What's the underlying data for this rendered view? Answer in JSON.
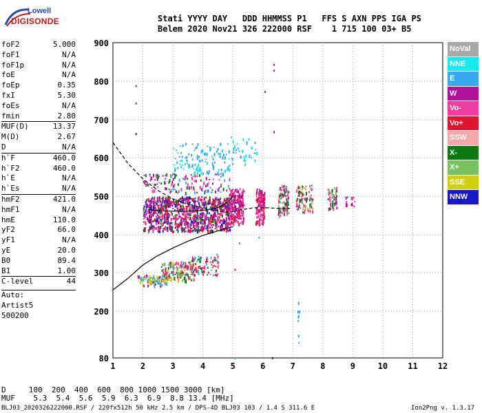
{
  "logo": {
    "line1": "Lowell",
    "line2": "DIGISONDE"
  },
  "header": {
    "row1": "Stati YYYY DAY   DDD HHMMSS P1   FFS S AXN PPS IGA PS",
    "row2": "Belem 2020 Nov21 326 222000 RSF    1 715 100 03+ B5"
  },
  "params": [
    {
      "name": "foF2",
      "value": "5.000"
    },
    {
      "name": "foF1",
      "value": "N/A"
    },
    {
      "name": "foF1p",
      "value": "N/A"
    },
    {
      "name": "foE",
      "value": "N/A"
    },
    {
      "name": "foEp",
      "value": "0.35"
    },
    {
      "name": "fxI",
      "value": "5.30"
    },
    {
      "name": "foEs",
      "value": "N/A"
    },
    {
      "name": "fmin",
      "value": "2.80",
      "sep": false
    },
    {
      "name": "MUF(D)",
      "value": "13.37",
      "sep": true
    },
    {
      "name": "M(D)",
      "value": "2.67"
    },
    {
      "name": "D",
      "value": "N/A"
    },
    {
      "name": "h`F",
      "value": "460.0",
      "sep": true
    },
    {
      "name": "h`F2",
      "value": "460.0"
    },
    {
      "name": "h`E",
      "value": "N/A"
    },
    {
      "name": "h`Es",
      "value": "N/A"
    },
    {
      "name": "hmF2",
      "value": "421.0",
      "sep": true
    },
    {
      "name": "hmF1",
      "value": "N/A"
    },
    {
      "name": "hmE",
      "value": "110.0"
    },
    {
      "name": "yF2",
      "value": "66.0"
    },
    {
      "name": "yF1",
      "value": "N/A"
    },
    {
      "name": "yE",
      "value": "20.0"
    },
    {
      "name": "B0",
      "value": "89.4"
    },
    {
      "name": "B1",
      "value": "1.00"
    },
    {
      "name": "C-level",
      "value": "44",
      "sep": true
    }
  ],
  "auto": {
    "line1": "Auto:",
    "line2": "Artist5",
    "line3": "500200"
  },
  "legend": [
    {
      "label": "NoVal",
      "color": "#a8a8a8"
    },
    {
      "label": "NNE",
      "color": "#18e8f0"
    },
    {
      "label": "E",
      "color": "#38a8f0"
    },
    {
      "label": "W",
      "color": "#b0109c"
    },
    {
      "label": "Vo-",
      "color": "#f03ca0"
    },
    {
      "label": "Vo+",
      "color": "#e0142c"
    },
    {
      "label": "SSW",
      "color": "#f4a8a8"
    },
    {
      "label": "X-",
      "color": "#107810"
    },
    {
      "label": "X+",
      "color": "#78c060"
    },
    {
      "label": "SSE",
      "color": "#d0d010"
    },
    {
      "label": "NNW",
      "color": "#1818c8"
    }
  ],
  "muf_table": {
    "row1": "D     100  200  400  600  800 1000 1500 3000 [km]",
    "row2": "MUF    5.3  5.4  5.6  5.9  6.3  6.9  8.8 13.4 [MHz]"
  },
  "footer": {
    "left": "BLJ03_2020326222000.RSF / 220fx512h 50 kHz 2.5 km / DPS-4D BLJ03 103 / 1.4 S 311.6 E",
    "right": "Ion2Png v. 1.3.17"
  },
  "chart_data": {
    "type": "scatter",
    "xlabel": "",
    "ylabel": "",
    "xlim": [
      1,
      12
    ],
    "ylim": [
      80,
      900
    ],
    "xticks": [
      1,
      2,
      3,
      4,
      5,
      6,
      7,
      8,
      9,
      10,
      11,
      12
    ],
    "yticks": [
      80,
      200,
      300,
      400,
      500,
      600,
      700,
      800,
      900
    ],
    "grid": "dotted",
    "clusters": [
      {
        "x": [
          2.0,
          4.9
        ],
        "y": [
          410,
          500
        ],
        "n": 900,
        "colors": [
          "#b0109c",
          "#f03ca0",
          "#b0109c",
          "#e0142c",
          "#107810",
          "#1818c8"
        ]
      },
      {
        "x": [
          4.85,
          5.35
        ],
        "y": [
          430,
          520
        ],
        "n": 220,
        "colors": [
          "#b0109c",
          "#f03ca0",
          "#e0142c",
          "#b0109c"
        ]
      },
      {
        "x": [
          5.75,
          6.05
        ],
        "y": [
          430,
          520
        ],
        "n": 140,
        "colors": [
          "#b0109c",
          "#f03ca0",
          "#e0142c"
        ]
      },
      {
        "x": [
          6.5,
          6.85
        ],
        "y": [
          450,
          530
        ],
        "n": 90,
        "colors": [
          "#b0109c",
          "#f03ca0",
          "#107810",
          "#78c060"
        ]
      },
      {
        "x": [
          7.1,
          7.65
        ],
        "y": [
          460,
          530
        ],
        "n": 90,
        "colors": [
          "#b0109c",
          "#f03ca0",
          "#107810",
          "#78c060",
          "#d0d010"
        ]
      },
      {
        "x": [
          8.15,
          8.45
        ],
        "y": [
          470,
          525
        ],
        "n": 50,
        "colors": [
          "#b0109c",
          "#107810",
          "#78c060",
          "#f03ca0"
        ]
      },
      {
        "x": [
          8.75,
          9.05
        ],
        "y": [
          475,
          500
        ],
        "n": 18,
        "colors": [
          "#b0109c",
          "#38a8f0",
          "#f03ca0"
        ]
      },
      {
        "x": [
          2.0,
          4.9
        ],
        "y": [
          510,
          560
        ],
        "n": 140,
        "colors": [
          "#b0109c",
          "#f03ca0",
          "#107810",
          "#38a8f0"
        ]
      },
      {
        "x": [
          3.0,
          4.9
        ],
        "y": [
          560,
          640
        ],
        "n": 120,
        "colors": [
          "#38a8f0",
          "#18e8f0",
          "#38a8f0"
        ]
      },
      {
        "x": [
          4.85,
          5.8
        ],
        "y": [
          580,
          660
        ],
        "n": 40,
        "colors": [
          "#38a8f0",
          "#18e8f0"
        ]
      },
      {
        "x": [
          1.8,
          2.8
        ],
        "y": [
          268,
          295
        ],
        "n": 90,
        "colors": [
          "#78c060",
          "#38a8f0",
          "#d0d010",
          "#b0109c"
        ]
      },
      {
        "x": [
          2.6,
          3.7
        ],
        "y": [
          280,
          330
        ],
        "n": 150,
        "colors": [
          "#e0142c",
          "#f03ca0",
          "#107810",
          "#78c060",
          "#38a8f0",
          "#d0d010"
        ]
      },
      {
        "x": [
          3.6,
          4.5
        ],
        "y": [
          295,
          345
        ],
        "n": 80,
        "colors": [
          "#e0142c",
          "#f03ca0",
          "#107810",
          "#38a8f0"
        ]
      },
      {
        "x": [
          7.15,
          7.2
        ],
        "y": [
          100,
          240
        ],
        "n": 8,
        "colors": [
          "#38a8f0"
        ]
      }
    ],
    "isolated": [
      {
        "x": 1.75,
        "y": 790,
        "c": "#b0109c"
      },
      {
        "x": 1.75,
        "y": 745,
        "c": "#b0109c"
      },
      {
        "x": 1.75,
        "y": 665,
        "c": "#1818c8"
      },
      {
        "x": 6.35,
        "y": 845,
        "c": "#b0109c"
      },
      {
        "x": 6.35,
        "y": 830,
        "c": "#b0109c"
      },
      {
        "x": 6.05,
        "y": 775,
        "c": "#b0109c"
      },
      {
        "x": 6.35,
        "y": 670,
        "c": "#b0109c"
      },
      {
        "x": 5.05,
        "y": 310,
        "c": "#e0142c"
      },
      {
        "x": 4.45,
        "y": 350,
        "c": "#38a8f0"
      },
      {
        "x": 5.2,
        "y": 380,
        "c": "#38a8f0"
      },
      {
        "x": 5.85,
        "y": 395,
        "c": "#38a8f0"
      },
      {
        "x": 6.3,
        "y": 82,
        "c": "#1818c8"
      },
      {
        "x": 5.05,
        "y": 82,
        "c": "#38a8f0"
      }
    ],
    "profile_solid": [
      [
        1.0,
        255
      ],
      [
        1.5,
        285
      ],
      [
        2.0,
        320
      ],
      [
        2.5,
        345
      ],
      [
        3.0,
        365
      ],
      [
        3.5,
        383
      ],
      [
        4.0,
        398
      ],
      [
        4.5,
        410
      ],
      [
        5.0,
        421
      ]
    ],
    "profile_solid2": [
      [
        2.2,
        465
      ],
      [
        2.6,
        462
      ],
      [
        3.0,
        461
      ],
      [
        3.5,
        461
      ],
      [
        4.0,
        463
      ],
      [
        4.5,
        470
      ],
      [
        4.85,
        485
      ],
      [
        5.0,
        500
      ]
    ],
    "profile_dashed": [
      [
        1.0,
        640
      ],
      [
        1.5,
        585
      ],
      [
        2.0,
        545
      ],
      [
        2.5,
        515
      ],
      [
        3.0,
        493
      ],
      [
        3.5,
        479
      ],
      [
        4.0,
        470
      ],
      [
        4.5,
        462
      ],
      [
        4.85,
        458
      ],
      [
        5.0,
        460
      ]
    ],
    "profile_dashed2": [
      [
        5.0,
        460
      ],
      [
        5.3,
        465
      ],
      [
        5.7,
        470
      ],
      [
        6.1,
        470
      ],
      [
        6.6,
        468
      ],
      [
        6.9,
        468
      ]
    ]
  }
}
